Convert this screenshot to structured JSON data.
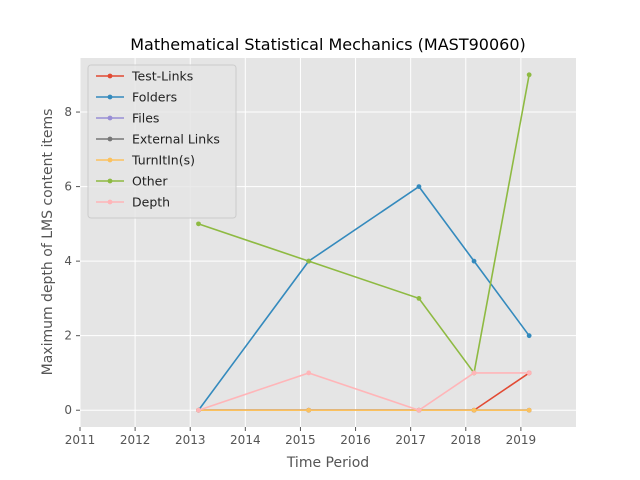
{
  "chart_data": {
    "type": "line",
    "title": "Mathematical Statistical Mechanics (MAST90060)",
    "xlabel": "Time Period",
    "ylabel": "Maximum depth of LMS content items",
    "xlim": [
      2011,
      2020
    ],
    "ylim": [
      -0.45,
      9.45
    ],
    "xticks": [
      2011,
      2012,
      2013,
      2014,
      2015,
      2016,
      2017,
      2018,
      2019
    ],
    "yticks": [
      0,
      2,
      4,
      6,
      8
    ],
    "grid": true,
    "legend_position": "top-left",
    "x": [
      2013.15,
      2015.15,
      2017.15,
      2018.15,
      2019.15
    ],
    "series": [
      {
        "name": "Test-Links",
        "color": "#E24A33",
        "values": [
          0,
          0,
          0,
          0,
          1
        ]
      },
      {
        "name": "Folders",
        "color": "#348ABD",
        "values": [
          0,
          4,
          6,
          4,
          2
        ]
      },
      {
        "name": "Files",
        "color": "#988ED5",
        "values": [
          0,
          0,
          0,
          0,
          0
        ]
      },
      {
        "name": "External Links",
        "color": "#777777",
        "values": [
          0,
          0,
          0,
          0,
          0
        ]
      },
      {
        "name": "TurnItIn(s)",
        "color": "#FBC15E",
        "values": [
          0,
          0,
          0,
          0,
          0
        ]
      },
      {
        "name": "Other",
        "color": "#8EBA42",
        "values": [
          5,
          4,
          3,
          1,
          9
        ]
      },
      {
        "name": "Depth",
        "color": "#FFB5B8",
        "values": [
          0,
          1,
          0,
          1,
          1
        ]
      }
    ]
  }
}
